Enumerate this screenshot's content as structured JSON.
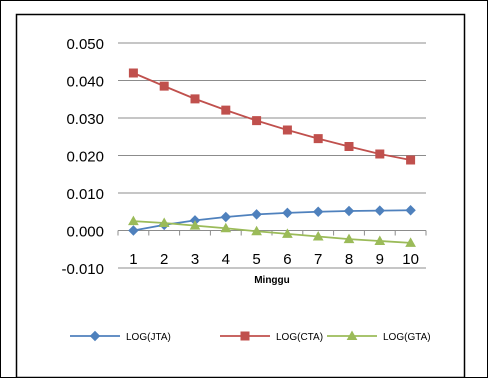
{
  "chart_data": {
    "type": "line",
    "title": "",
    "xlabel": "Minggu",
    "ylabel": "",
    "x": [
      1,
      2,
      3,
      4,
      5,
      6,
      7,
      8,
      9,
      10
    ],
    "ylim": [
      -0.01,
      0.05
    ],
    "yticks": [
      "-0.010",
      "0.000",
      "0.010",
      "0.020",
      "0.030",
      "0.040",
      "0.050"
    ],
    "grid": true,
    "legend": "bottom",
    "series": [
      {
        "name": "LOG(JTA)",
        "color": "#4F81BD",
        "marker": "diamond",
        "values": [
          0.0,
          0.0015,
          0.0027,
          0.0036,
          0.0043,
          0.0047,
          0.005,
          0.0052,
          0.0053,
          0.0054
        ]
      },
      {
        "name": "LOG(CTA)",
        "color": "#C0504D",
        "marker": "square",
        "values": [
          0.042,
          0.0385,
          0.0351,
          0.0321,
          0.0293,
          0.0268,
          0.0245,
          0.0224,
          0.0204,
          0.0188
        ]
      },
      {
        "name": "LOG(GTA)",
        "color": "#9BBB59",
        "marker": "triangle",
        "values": [
          0.0025,
          0.002,
          0.0013,
          0.0006,
          -0.0002,
          -0.0009,
          -0.0016,
          -0.0023,
          -0.0028,
          -0.0033
        ]
      }
    ]
  }
}
